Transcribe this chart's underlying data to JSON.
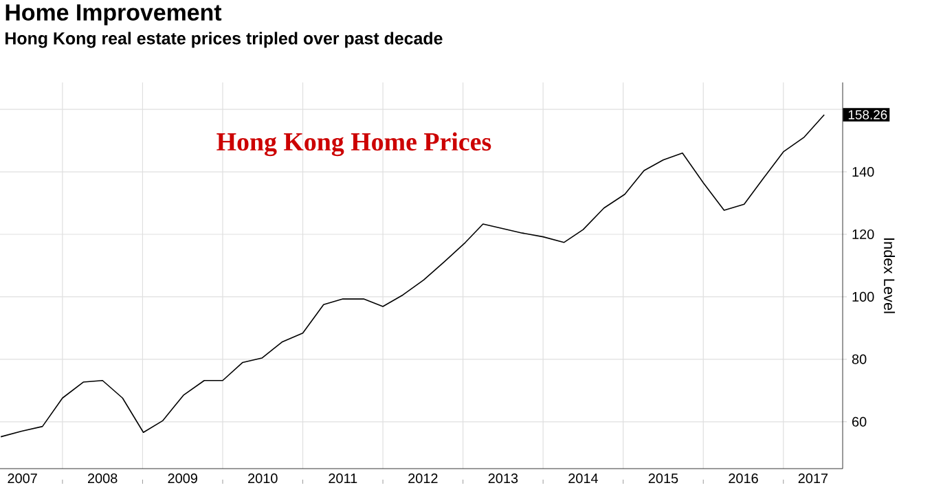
{
  "chart_data": {
    "type": "line",
    "title": "Home Improvement",
    "subtitle": "Hong Kong real estate prices tripled over past decade",
    "ylabel": "Index Level",
    "annotations": [
      "Hong Kong Home Prices"
    ],
    "x": [
      2007.23,
      2007.49,
      2007.75,
      2008.0,
      2008.26,
      2008.5,
      2008.75,
      2009.01,
      2009.25,
      2009.51,
      2009.77,
      2010.0,
      2010.25,
      2010.49,
      2010.74,
      2011.0,
      2011.26,
      2011.5,
      2011.76,
      2012.0,
      2012.25,
      2012.51,
      2012.77,
      2013.03,
      2013.25,
      2013.5,
      2013.74,
      2014.0,
      2014.26,
      2014.5,
      2014.76,
      2015.02,
      2015.26,
      2015.5,
      2015.74,
      2016.0,
      2016.26,
      2016.51,
      2016.75,
      2017.0,
      2017.26,
      2017.51
    ],
    "series": [
      {
        "color": "#000000",
        "values": [
          55.2,
          57.0,
          58.5,
          67.6,
          72.7,
          73.2,
          67.6,
          56.6,
          60.3,
          68.5,
          73.2,
          73.2,
          79.0,
          80.4,
          85.5,
          88.4,
          97.5,
          99.3,
          99.3,
          96.9,
          100.6,
          105.4,
          111.3,
          117.4,
          123.3,
          121.8,
          120.4,
          119.2,
          117.4,
          121.5,
          128.4,
          132.8,
          140.4,
          143.8,
          146.0,
          136.5,
          127.7,
          129.6,
          137.9,
          146.4,
          151.1,
          158.26
        ],
        "value_labels": [
          null,
          null,
          null,
          null,
          null,
          null,
          null,
          null,
          null,
          null,
          null,
          null,
          null,
          null,
          null,
          null,
          null,
          null,
          null,
          null,
          null,
          null,
          null,
          null,
          null,
          null,
          null,
          null,
          null,
          null,
          null,
          null,
          null,
          null,
          null,
          null,
          null,
          null,
          null,
          null,
          null,
          "158.26"
        ]
      }
    ],
    "xlim": [
      2007.22,
      2017.74
    ],
    "ylim": [
      45,
      168.6
    ],
    "xticks": [
      {
        "value": 2008,
        "label": null
      },
      {
        "value": 2009,
        "label": null
      },
      {
        "value": 2010,
        "label": null
      },
      {
        "value": 2011,
        "label": null
      },
      {
        "value": 2012,
        "label": null
      },
      {
        "value": 2013,
        "label": null
      },
      {
        "value": 2014,
        "label": null
      },
      {
        "value": 2015,
        "label": null
      },
      {
        "value": 2016,
        "label": null
      },
      {
        "value": 2017,
        "label": null
      },
      {
        "value": 2007.5,
        "label": "2007"
      },
      {
        "value": 2008.5,
        "label": "2008"
      },
      {
        "value": 2009.5,
        "label": "2009"
      },
      {
        "value": 2010.5,
        "label": "2010"
      },
      {
        "value": 2011.5,
        "label": "2011"
      },
      {
        "value": 2012.5,
        "label": "2012"
      },
      {
        "value": 2013.5,
        "label": "2013"
      },
      {
        "value": 2014.5,
        "label": "2014"
      },
      {
        "value": 2015.5,
        "label": "2015"
      },
      {
        "value": 2016.5,
        "label": "2016"
      },
      {
        "value": 2017.37,
        "label": "2017"
      }
    ],
    "yticks": [
      60,
      80,
      100,
      120,
      140,
      {
        "value": 160,
        "label": null
      }
    ],
    "grid": true,
    "marker": "none",
    "line_style": "solid"
  }
}
